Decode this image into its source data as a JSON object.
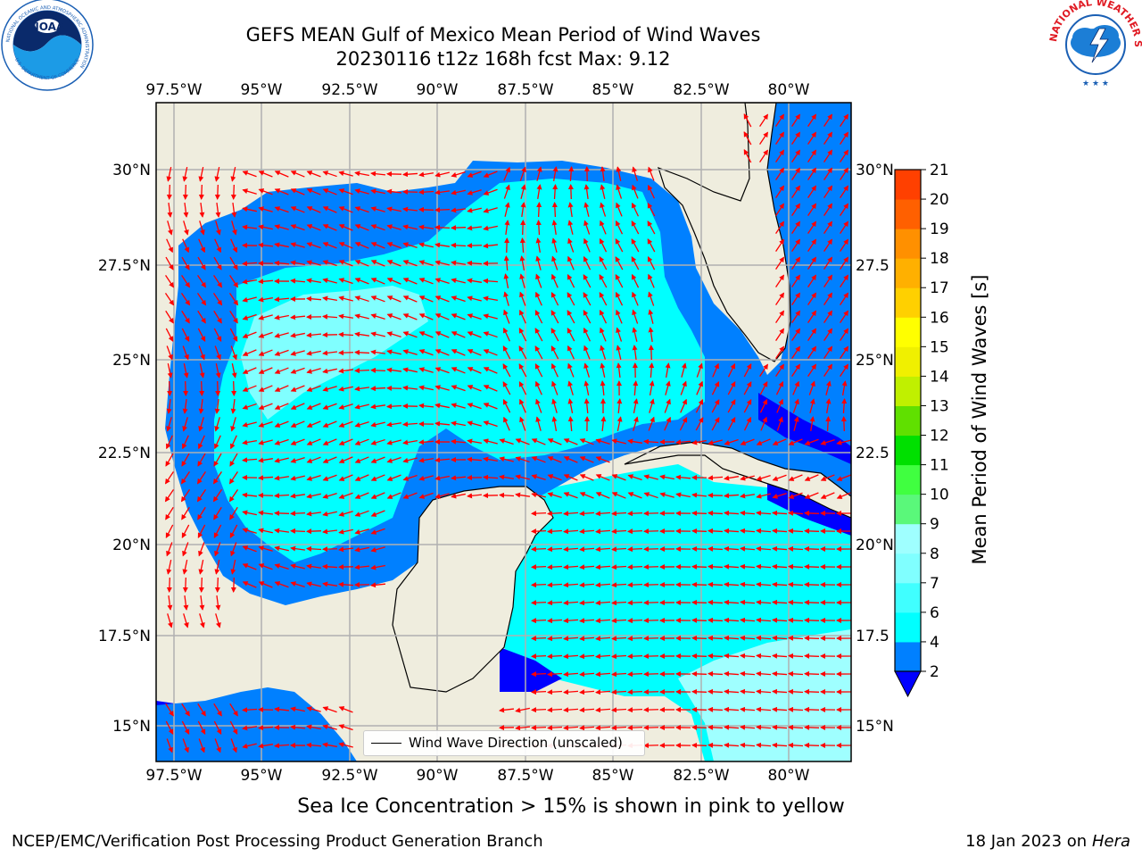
{
  "title_line1": "GEFS MEAN Gulf of Mexico Mean Period of Wind Waves",
  "title_line2": "20230116 t12z 168h fcst   Max: 9.12",
  "logo_left": {
    "name": "NOAA",
    "ring_text": "NATIONAL OCEANIC AND ATMOSPHERIC ADMINISTRATION",
    "bottom_text": "U.S. DEPARTMENT OF COMMERCE",
    "color": "#1a5fb4"
  },
  "logo_right": {
    "ring_text": "NATIONAL WEATHER SERVICE",
    "color": "#e01b24"
  },
  "map": {
    "lon_labels": [
      "97.5°W",
      "95°W",
      "92.5°W",
      "90°W",
      "87.5°W",
      "85°W",
      "82.5°W",
      "80°W"
    ],
    "lat_labels_left": [
      "30°N",
      "27.5°N",
      "25°N",
      "22.5°N",
      "20°N",
      "17.5°N",
      "15°N"
    ],
    "lat_labels_right": [
      "30°N",
      "27.5",
      "25°N",
      "22.5",
      "20°N",
      "17.5",
      "15°N"
    ],
    "land_color": "#efedde",
    "arrow_color": "#ff0000"
  },
  "legend": {
    "label": "Wind Wave Direction (unscaled)"
  },
  "colorbar": {
    "label": "Mean Period of Wind Waves [s]",
    "ticks": [
      "2",
      "4",
      "6",
      "7",
      "8",
      "9",
      "10",
      "11",
      "12",
      "13",
      "14",
      "15",
      "16",
      "17",
      "18",
      "19",
      "20",
      "21"
    ],
    "colors": [
      "#0080ff",
      "#00ffff",
      "#40ffff",
      "#80ffff",
      "#9fffff",
      "#5af87a",
      "#40ff40",
      "#00e000",
      "#60e000",
      "#c0f000",
      "#f0f000",
      "#ffff00",
      "#ffd000",
      "#ffb000",
      "#ff9000",
      "#ff6000",
      "#ff4000",
      "#ff0000"
    ],
    "under_color": "#0000ff"
  },
  "subnote": "Sea Ice Concentration > 15% is shown in pink to yellow",
  "footer_left": "NCEP/EMC/Verification Post Processing Product Generation Branch",
  "footer_date": "18 Jan 2023 on",
  "footer_machine": "Hera"
}
